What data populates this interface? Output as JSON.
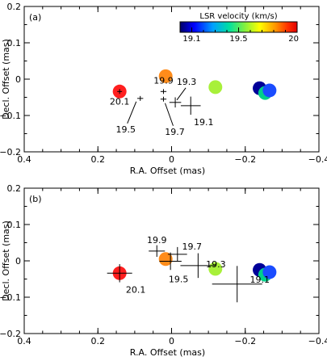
{
  "chart_data": [
    {
      "type": "scatter",
      "panel_label": "(a)",
      "xlabel": "R.A. Offset (mas)",
      "ylabel": "Decl. Offset (mas)",
      "xlim": [
        0.4,
        -0.4
      ],
      "ylim": [
        -0.2,
        0.2
      ],
      "x_ticks": [
        0.4,
        0.2,
        0,
        -0.2,
        -0.4
      ],
      "x_tick_labels": [
        "0.4",
        "0.2",
        "0",
        "−0.2",
        "−0.4"
      ],
      "y_ticks": [
        -0.2,
        -0.1,
        0,
        0.1,
        0.2
      ],
      "y_tick_labels": [
        "−0.2",
        "−0.1",
        "0",
        "0.1",
        "0.2"
      ],
      "grid": false,
      "colorbar": {
        "title": "LSR velocity (km/s)",
        "range": [
          19.0,
          20.0
        ],
        "ticks": [
          19.1,
          19.5,
          20
        ],
        "tick_labels": [
          "19.1",
          "19.5",
          "20"
        ],
        "placement": "top-right"
      },
      "spots": [
        {
          "x": 0.141,
          "y": -0.034,
          "color": "#ff1f1f"
        },
        {
          "x": 0.016,
          "y": 0.008,
          "color": "#ff8c1a"
        },
        {
          "x": -0.119,
          "y": -0.022,
          "color": "#a8f03a"
        },
        {
          "x": -0.239,
          "y": -0.025,
          "color": "#000099"
        },
        {
          "x": -0.254,
          "y": -0.038,
          "color": "#00d08a"
        },
        {
          "x": -0.266,
          "y": -0.031,
          "color": "#1a4cff"
        }
      ],
      "continuum_peaks": [
        {
          "x": 0.141,
          "y": -0.034,
          "label": "20.1",
          "x_err": 0.006,
          "y_err": 0.006
        },
        {
          "x": 0.085,
          "y": -0.053,
          "label": "19.5",
          "x_err": 0.008,
          "y_err": 0.006
        },
        {
          "x": 0.022,
          "y": -0.034,
          "label": "19.9",
          "x_err": 0.008,
          "y_err": 0.006
        },
        {
          "x": 0.022,
          "y": -0.055,
          "label": "19.7",
          "x_err": 0.008,
          "y_err": 0.006
        },
        {
          "x": -0.01,
          "y": -0.064,
          "label": "19.3",
          "x_err": 0.016,
          "y_err": 0.014
        },
        {
          "x": -0.052,
          "y": -0.073,
          "label": "19.1",
          "x_err": 0.027,
          "y_err": 0.025
        }
      ]
    },
    {
      "type": "scatter",
      "panel_label": "(b)",
      "xlabel": "R.A. Offset (mas)",
      "ylabel": "Decl. Offset (mas)",
      "xlim": [
        0.4,
        -0.4
      ],
      "ylim": [
        -0.2,
        0.2
      ],
      "x_ticks": [
        0.4,
        0.2,
        0,
        -0.2,
        -0.4
      ],
      "x_tick_labels": [
        "0.4",
        "0.2",
        "0",
        "−0.2",
        "−0.4"
      ],
      "y_ticks": [
        -0.2,
        -0.1,
        0,
        0.1,
        0.2
      ],
      "y_tick_labels": [
        "−0.2",
        "−0.1",
        "0",
        "0.1",
        "0.2"
      ],
      "grid": false,
      "spots": [
        {
          "x": 0.141,
          "y": -0.034,
          "color": "#ff1f1f"
        },
        {
          "x": 0.016,
          "y": 0.005,
          "color": "#ff8c1a"
        },
        {
          "x": -0.119,
          "y": -0.022,
          "color": "#a8f03a"
        },
        {
          "x": -0.239,
          "y": -0.025,
          "color": "#000099"
        },
        {
          "x": -0.254,
          "y": -0.038,
          "color": "#00d08a"
        },
        {
          "x": -0.266,
          "y": -0.031,
          "color": "#1a4cff"
        }
      ],
      "continuum_peaks": [
        {
          "x": 0.141,
          "y": -0.034,
          "label": "20.1",
          "x_err": 0.034,
          "y_err": 0.025
        },
        {
          "x": 0.04,
          "y": 0.027,
          "label": "19.9",
          "x_err": 0.022,
          "y_err": 0.016
        },
        {
          "x": -0.016,
          "y": 0.018,
          "label": "19.7",
          "x_err": 0.026,
          "y_err": 0.02
        },
        {
          "x": 0.003,
          "y": -0.001,
          "label": "19.5",
          "x_err": 0.03,
          "y_err": 0.024
        },
        {
          "x": -0.072,
          "y": -0.013,
          "label": "19.3",
          "x_err": 0.048,
          "y_err": 0.034
        },
        {
          "x": -0.178,
          "y": -0.064,
          "label": "19.1",
          "x_err": 0.068,
          "y_err": 0.05
        }
      ]
    }
  ]
}
